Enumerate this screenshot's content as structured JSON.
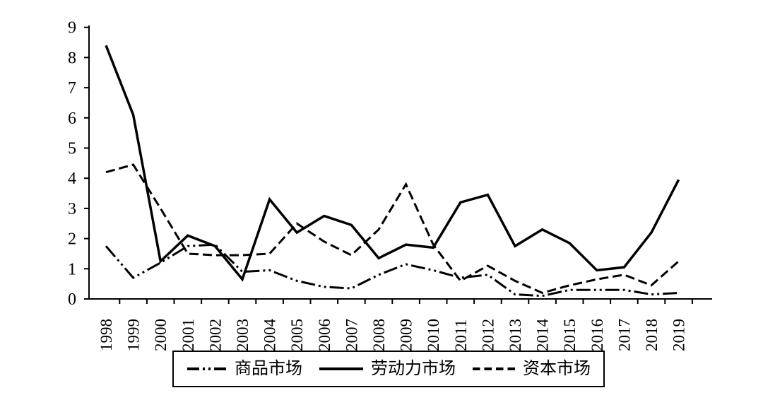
{
  "chart_data": {
    "type": "line",
    "title": "",
    "xlabel": "",
    "ylabel": "",
    "x": [
      "1998",
      "1999",
      "2000",
      "2001",
      "2002",
      "2003",
      "2004",
      "2005",
      "2006",
      "2007",
      "2008",
      "2009",
      "2010",
      "2011",
      "2012",
      "2013",
      "2014",
      "2015",
      "2016",
      "2017",
      "2018",
      "2019"
    ],
    "y_ticks": [
      0,
      1,
      2,
      3,
      4,
      5,
      6,
      7,
      8,
      9
    ],
    "ylim": [
      0,
      9
    ],
    "grid": false,
    "legend_position": "bottom-box",
    "line_color": "#000000",
    "background_color": "#ffffff",
    "series": [
      {
        "id": "commodity-market",
        "name": "商品市场",
        "style": "dash-dot-dot",
        "values": [
          1.75,
          0.7,
          1.2,
          1.75,
          1.8,
          0.9,
          0.95,
          0.6,
          0.4,
          0.35,
          0.8,
          1.15,
          0.95,
          0.7,
          0.8,
          0.15,
          0.1,
          0.3,
          0.3,
          0.3,
          0.15,
          0.2
        ]
      },
      {
        "id": "labor-market",
        "name": "劳动力市场",
        "style": "solid",
        "values": [
          8.4,
          6.1,
          1.25,
          2.1,
          1.75,
          0.65,
          3.3,
          2.2,
          2.75,
          2.45,
          1.35,
          1.8,
          1.7,
          3.2,
          3.45,
          1.75,
          2.3,
          1.85,
          0.95,
          1.05,
          2.2,
          3.95
        ]
      },
      {
        "id": "capital-market",
        "name": "资本市场",
        "style": "dashed",
        "values": [
          4.2,
          4.45,
          3.0,
          1.5,
          1.45,
          1.45,
          1.5,
          2.5,
          1.9,
          1.45,
          2.3,
          3.8,
          1.8,
          0.6,
          1.1,
          0.6,
          0.2,
          0.45,
          0.65,
          0.8,
          0.45,
          1.25
        ]
      }
    ]
  }
}
